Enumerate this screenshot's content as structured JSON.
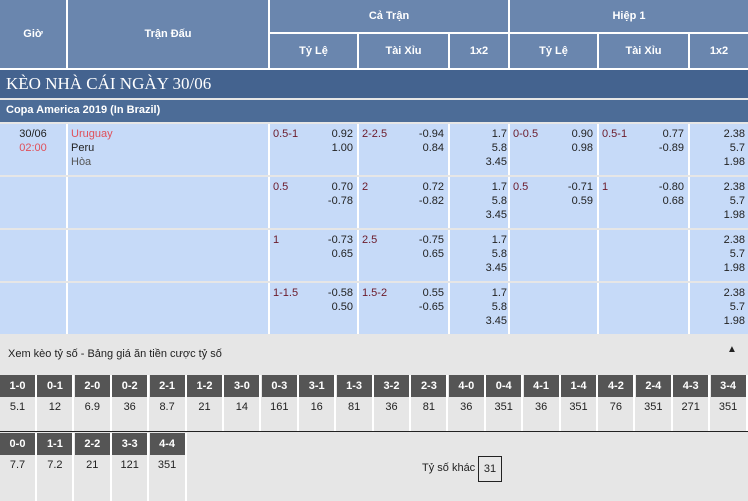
{
  "header": {
    "gio": "Giờ",
    "tran_dau": "Trận Đấu",
    "ca_tran": "Cả Trận",
    "hiep1": "Hiệp 1",
    "ty_le": "Tỷ Lệ",
    "tai_xiu": "Tài Xỉu",
    "x12": "1x2"
  },
  "banner": "KÈO NHÀ CÁI NGÀY 30/06",
  "league": "Copa America 2019 (In Brazil)",
  "match": {
    "date": "30/06",
    "time": "02:00",
    "home": "Uruguay",
    "away": "Peru",
    "draw": "Hòa"
  },
  "rows": [
    {
      "ft_hdp": "0.5-1",
      "ft_hdp_o": [
        "0.92",
        "1.00"
      ],
      "ft_ou": "2-2.5",
      "ft_ou_o": [
        "-0.94",
        "0.84"
      ],
      "ft_1x2": [
        "1.7",
        "5.8",
        "3.45"
      ],
      "h1_hdp": "0-0.5",
      "h1_hdp_o": [
        "0.90",
        "0.98"
      ],
      "h1_ou": "0.5-1",
      "h1_ou_o": [
        "0.77",
        "-0.89"
      ],
      "h1_1x2": [
        "2.38",
        "5.7",
        "1.98"
      ]
    },
    {
      "ft_hdp": "0.5",
      "ft_hdp_o": [
        "0.70",
        "-0.78"
      ],
      "ft_ou": "2",
      "ft_ou_o": [
        "0.72",
        "-0.82"
      ],
      "ft_1x2": [
        "1.7",
        "5.8",
        "3.45"
      ],
      "h1_hdp": "0.5",
      "h1_hdp_o": [
        "-0.71",
        "0.59"
      ],
      "h1_ou": "1",
      "h1_ou_o": [
        "-0.80",
        "0.68"
      ],
      "h1_1x2": [
        "2.38",
        "5.7",
        "1.98"
      ]
    },
    {
      "ft_hdp": "1",
      "ft_hdp_o": [
        "-0.73",
        "0.65"
      ],
      "ft_ou": "2.5",
      "ft_ou_o": [
        "-0.75",
        "0.65"
      ],
      "ft_1x2": [
        "1.7",
        "5.8",
        "3.45"
      ],
      "h1_hdp": "",
      "h1_hdp_o": [
        "",
        ""
      ],
      "h1_ou": "",
      "h1_ou_o": [
        "",
        ""
      ],
      "h1_1x2": [
        "2.38",
        "5.7",
        "1.98"
      ]
    },
    {
      "ft_hdp": "1-1.5",
      "ft_hdp_o": [
        "-0.58",
        "0.50"
      ],
      "ft_ou": "1.5-2",
      "ft_ou_o": [
        "0.55",
        "-0.65"
      ],
      "ft_1x2": [
        "1.7",
        "5.8",
        "3.45"
      ],
      "h1_hdp": "",
      "h1_hdp_o": [
        "",
        ""
      ],
      "h1_ou": "",
      "h1_ou_o": [
        "",
        ""
      ],
      "h1_1x2": [
        "2.38",
        "5.7",
        "1.98"
      ]
    }
  ],
  "scores": {
    "title": "Xem kèo tỷ số - Bảng giá ăn tiền cược tỷ số",
    "row1": [
      [
        "1-0",
        "5.1"
      ],
      [
        "0-1",
        "12"
      ],
      [
        "2-0",
        "6.9"
      ],
      [
        "0-2",
        "36"
      ],
      [
        "2-1",
        "8.7"
      ],
      [
        "1-2",
        "21"
      ],
      [
        "3-0",
        "14"
      ],
      [
        "0-3",
        "161"
      ],
      [
        "3-1",
        "16"
      ],
      [
        "1-3",
        "81"
      ],
      [
        "3-2",
        "36"
      ],
      [
        "2-3",
        "81"
      ],
      [
        "4-0",
        "36"
      ],
      [
        "0-4",
        "351"
      ],
      [
        "4-1",
        "36"
      ],
      [
        "1-4",
        "351"
      ],
      [
        "4-2",
        "76"
      ],
      [
        "2-4",
        "351"
      ],
      [
        "4-3",
        "271"
      ],
      [
        "3-4",
        "351"
      ]
    ],
    "row2": [
      [
        "0-0",
        "7.7"
      ],
      [
        "1-1",
        "7.2"
      ],
      [
        "2-2",
        "21"
      ],
      [
        "3-3",
        "121"
      ],
      [
        "4-4",
        "351"
      ]
    ],
    "other_label": "Tỷ số khác",
    "other_value": "31"
  },
  "colors": {
    "header": "#6a86ae",
    "banner": "#44638f",
    "row": "#c6daf8",
    "home": "#e0505a"
  }
}
